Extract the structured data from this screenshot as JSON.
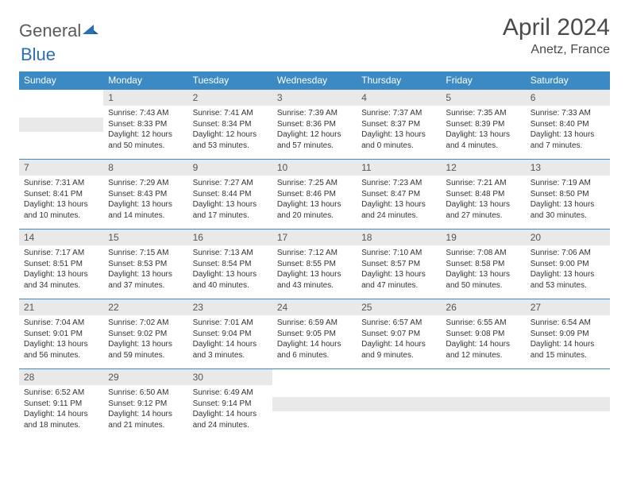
{
  "logo": {
    "text_gray": "General",
    "text_blue": "Blue",
    "icon_color": "#2a6fb5"
  },
  "title": "April 2024",
  "location": "Anetz, France",
  "colors": {
    "header_bg": "#3b8ac4",
    "header_text": "#ffffff",
    "daynum_bg": "#e9e9e9",
    "border": "#3b8ac4"
  },
  "day_headers": [
    "Sunday",
    "Monday",
    "Tuesday",
    "Wednesday",
    "Thursday",
    "Friday",
    "Saturday"
  ],
  "weeks": [
    [
      null,
      {
        "n": "1",
        "sr": "7:43 AM",
        "ss": "8:33 PM",
        "dl": "12 hours and 50 minutes."
      },
      {
        "n": "2",
        "sr": "7:41 AM",
        "ss": "8:34 PM",
        "dl": "12 hours and 53 minutes."
      },
      {
        "n": "3",
        "sr": "7:39 AM",
        "ss": "8:36 PM",
        "dl": "12 hours and 57 minutes."
      },
      {
        "n": "4",
        "sr": "7:37 AM",
        "ss": "8:37 PM",
        "dl": "13 hours and 0 minutes."
      },
      {
        "n": "5",
        "sr": "7:35 AM",
        "ss": "8:39 PM",
        "dl": "13 hours and 4 minutes."
      },
      {
        "n": "6",
        "sr": "7:33 AM",
        "ss": "8:40 PM",
        "dl": "13 hours and 7 minutes."
      }
    ],
    [
      {
        "n": "7",
        "sr": "7:31 AM",
        "ss": "8:41 PM",
        "dl": "13 hours and 10 minutes."
      },
      {
        "n": "8",
        "sr": "7:29 AM",
        "ss": "8:43 PM",
        "dl": "13 hours and 14 minutes."
      },
      {
        "n": "9",
        "sr": "7:27 AM",
        "ss": "8:44 PM",
        "dl": "13 hours and 17 minutes."
      },
      {
        "n": "10",
        "sr": "7:25 AM",
        "ss": "8:46 PM",
        "dl": "13 hours and 20 minutes."
      },
      {
        "n": "11",
        "sr": "7:23 AM",
        "ss": "8:47 PM",
        "dl": "13 hours and 24 minutes."
      },
      {
        "n": "12",
        "sr": "7:21 AM",
        "ss": "8:48 PM",
        "dl": "13 hours and 27 minutes."
      },
      {
        "n": "13",
        "sr": "7:19 AM",
        "ss": "8:50 PM",
        "dl": "13 hours and 30 minutes."
      }
    ],
    [
      {
        "n": "14",
        "sr": "7:17 AM",
        "ss": "8:51 PM",
        "dl": "13 hours and 34 minutes."
      },
      {
        "n": "15",
        "sr": "7:15 AM",
        "ss": "8:53 PM",
        "dl": "13 hours and 37 minutes."
      },
      {
        "n": "16",
        "sr": "7:13 AM",
        "ss": "8:54 PM",
        "dl": "13 hours and 40 minutes."
      },
      {
        "n": "17",
        "sr": "7:12 AM",
        "ss": "8:55 PM",
        "dl": "13 hours and 43 minutes."
      },
      {
        "n": "18",
        "sr": "7:10 AM",
        "ss": "8:57 PM",
        "dl": "13 hours and 47 minutes."
      },
      {
        "n": "19",
        "sr": "7:08 AM",
        "ss": "8:58 PM",
        "dl": "13 hours and 50 minutes."
      },
      {
        "n": "20",
        "sr": "7:06 AM",
        "ss": "9:00 PM",
        "dl": "13 hours and 53 minutes."
      }
    ],
    [
      {
        "n": "21",
        "sr": "7:04 AM",
        "ss": "9:01 PM",
        "dl": "13 hours and 56 minutes."
      },
      {
        "n": "22",
        "sr": "7:02 AM",
        "ss": "9:02 PM",
        "dl": "13 hours and 59 minutes."
      },
      {
        "n": "23",
        "sr": "7:01 AM",
        "ss": "9:04 PM",
        "dl": "14 hours and 3 minutes."
      },
      {
        "n": "24",
        "sr": "6:59 AM",
        "ss": "9:05 PM",
        "dl": "14 hours and 6 minutes."
      },
      {
        "n": "25",
        "sr": "6:57 AM",
        "ss": "9:07 PM",
        "dl": "14 hours and 9 minutes."
      },
      {
        "n": "26",
        "sr": "6:55 AM",
        "ss": "9:08 PM",
        "dl": "14 hours and 12 minutes."
      },
      {
        "n": "27",
        "sr": "6:54 AM",
        "ss": "9:09 PM",
        "dl": "14 hours and 15 minutes."
      }
    ],
    [
      {
        "n": "28",
        "sr": "6:52 AM",
        "ss": "9:11 PM",
        "dl": "14 hours and 18 minutes."
      },
      {
        "n": "29",
        "sr": "6:50 AM",
        "ss": "9:12 PM",
        "dl": "14 hours and 21 minutes."
      },
      {
        "n": "30",
        "sr": "6:49 AM",
        "ss": "9:14 PM",
        "dl": "14 hours and 24 minutes."
      },
      null,
      null,
      null,
      null
    ]
  ],
  "labels": {
    "sunrise": "Sunrise:",
    "sunset": "Sunset:",
    "daylight": "Daylight:"
  }
}
